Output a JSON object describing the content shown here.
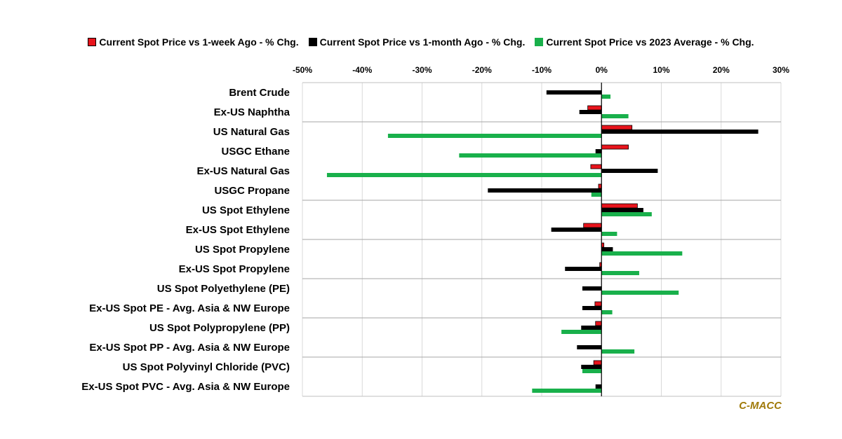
{
  "chart_data": {
    "type": "bar",
    "orientation": "horizontal",
    "categories": [
      "Brent Crude",
      "Ex-US Naphtha",
      "US Natural Gas",
      "USGC Ethane",
      "Ex-US Natural Gas",
      "USGC Propane",
      "US Spot Ethylene",
      "Ex-US Spot Ethylene",
      "US Spot Propylene",
      "Ex-US Spot Propylene",
      "US Spot Polyethylene (PE)",
      "Ex-US Spot PE - Avg. Asia & NW Europe",
      "US Spot Polypropylene (PP)",
      "Ex-US Spot PP - Avg. Asia & NW Europe",
      "US Spot Polyvinyl Chloride (PVC)",
      "Ex-US Spot PVC - Avg. Asia & NW Europe"
    ],
    "series": [
      {
        "name": "Current Spot Price vs 1-week Ago - % Chg.",
        "color": "#e8141c",
        "values": [
          0,
          -2.3,
          5.1,
          4.5,
          -1.8,
          -0.5,
          6.0,
          -3.0,
          0.4,
          -0.3,
          0,
          -1.1,
          -1.0,
          0,
          -1.3,
          0
        ]
      },
      {
        "name": "Current Spot Price vs 1-month Ago - % Chg.",
        "color": "#000000",
        "values": [
          -9.2,
          -3.7,
          26.2,
          -1.0,
          9.4,
          -19.0,
          7.0,
          -8.4,
          1.9,
          -6.1,
          -3.2,
          -3.2,
          -3.4,
          -4.1,
          -3.4,
          -1.0
        ]
      },
      {
        "name": "Current Spot Price vs 2023 Average - % Chg.",
        "color": "#19b04b",
        "values": [
          1.5,
          4.5,
          -35.7,
          -23.8,
          -45.9,
          -1.7,
          8.4,
          2.6,
          13.5,
          6.3,
          12.9,
          1.8,
          -6.7,
          5.5,
          -3.2,
          -11.6
        ]
      }
    ],
    "xlim": [
      -50,
      30
    ],
    "x_ticks": [
      "-50%",
      "-40%",
      "-30%",
      "-20%",
      "-10%",
      "0%",
      "10%",
      "20%",
      "30%"
    ],
    "legend_position": "top",
    "grid": "vertical gridlines",
    "group_separators_after_index": [
      1,
      5,
      7,
      9,
      11,
      13
    ],
    "title": "",
    "xlabel": "",
    "ylabel": ""
  },
  "watermark": "C-MACC"
}
